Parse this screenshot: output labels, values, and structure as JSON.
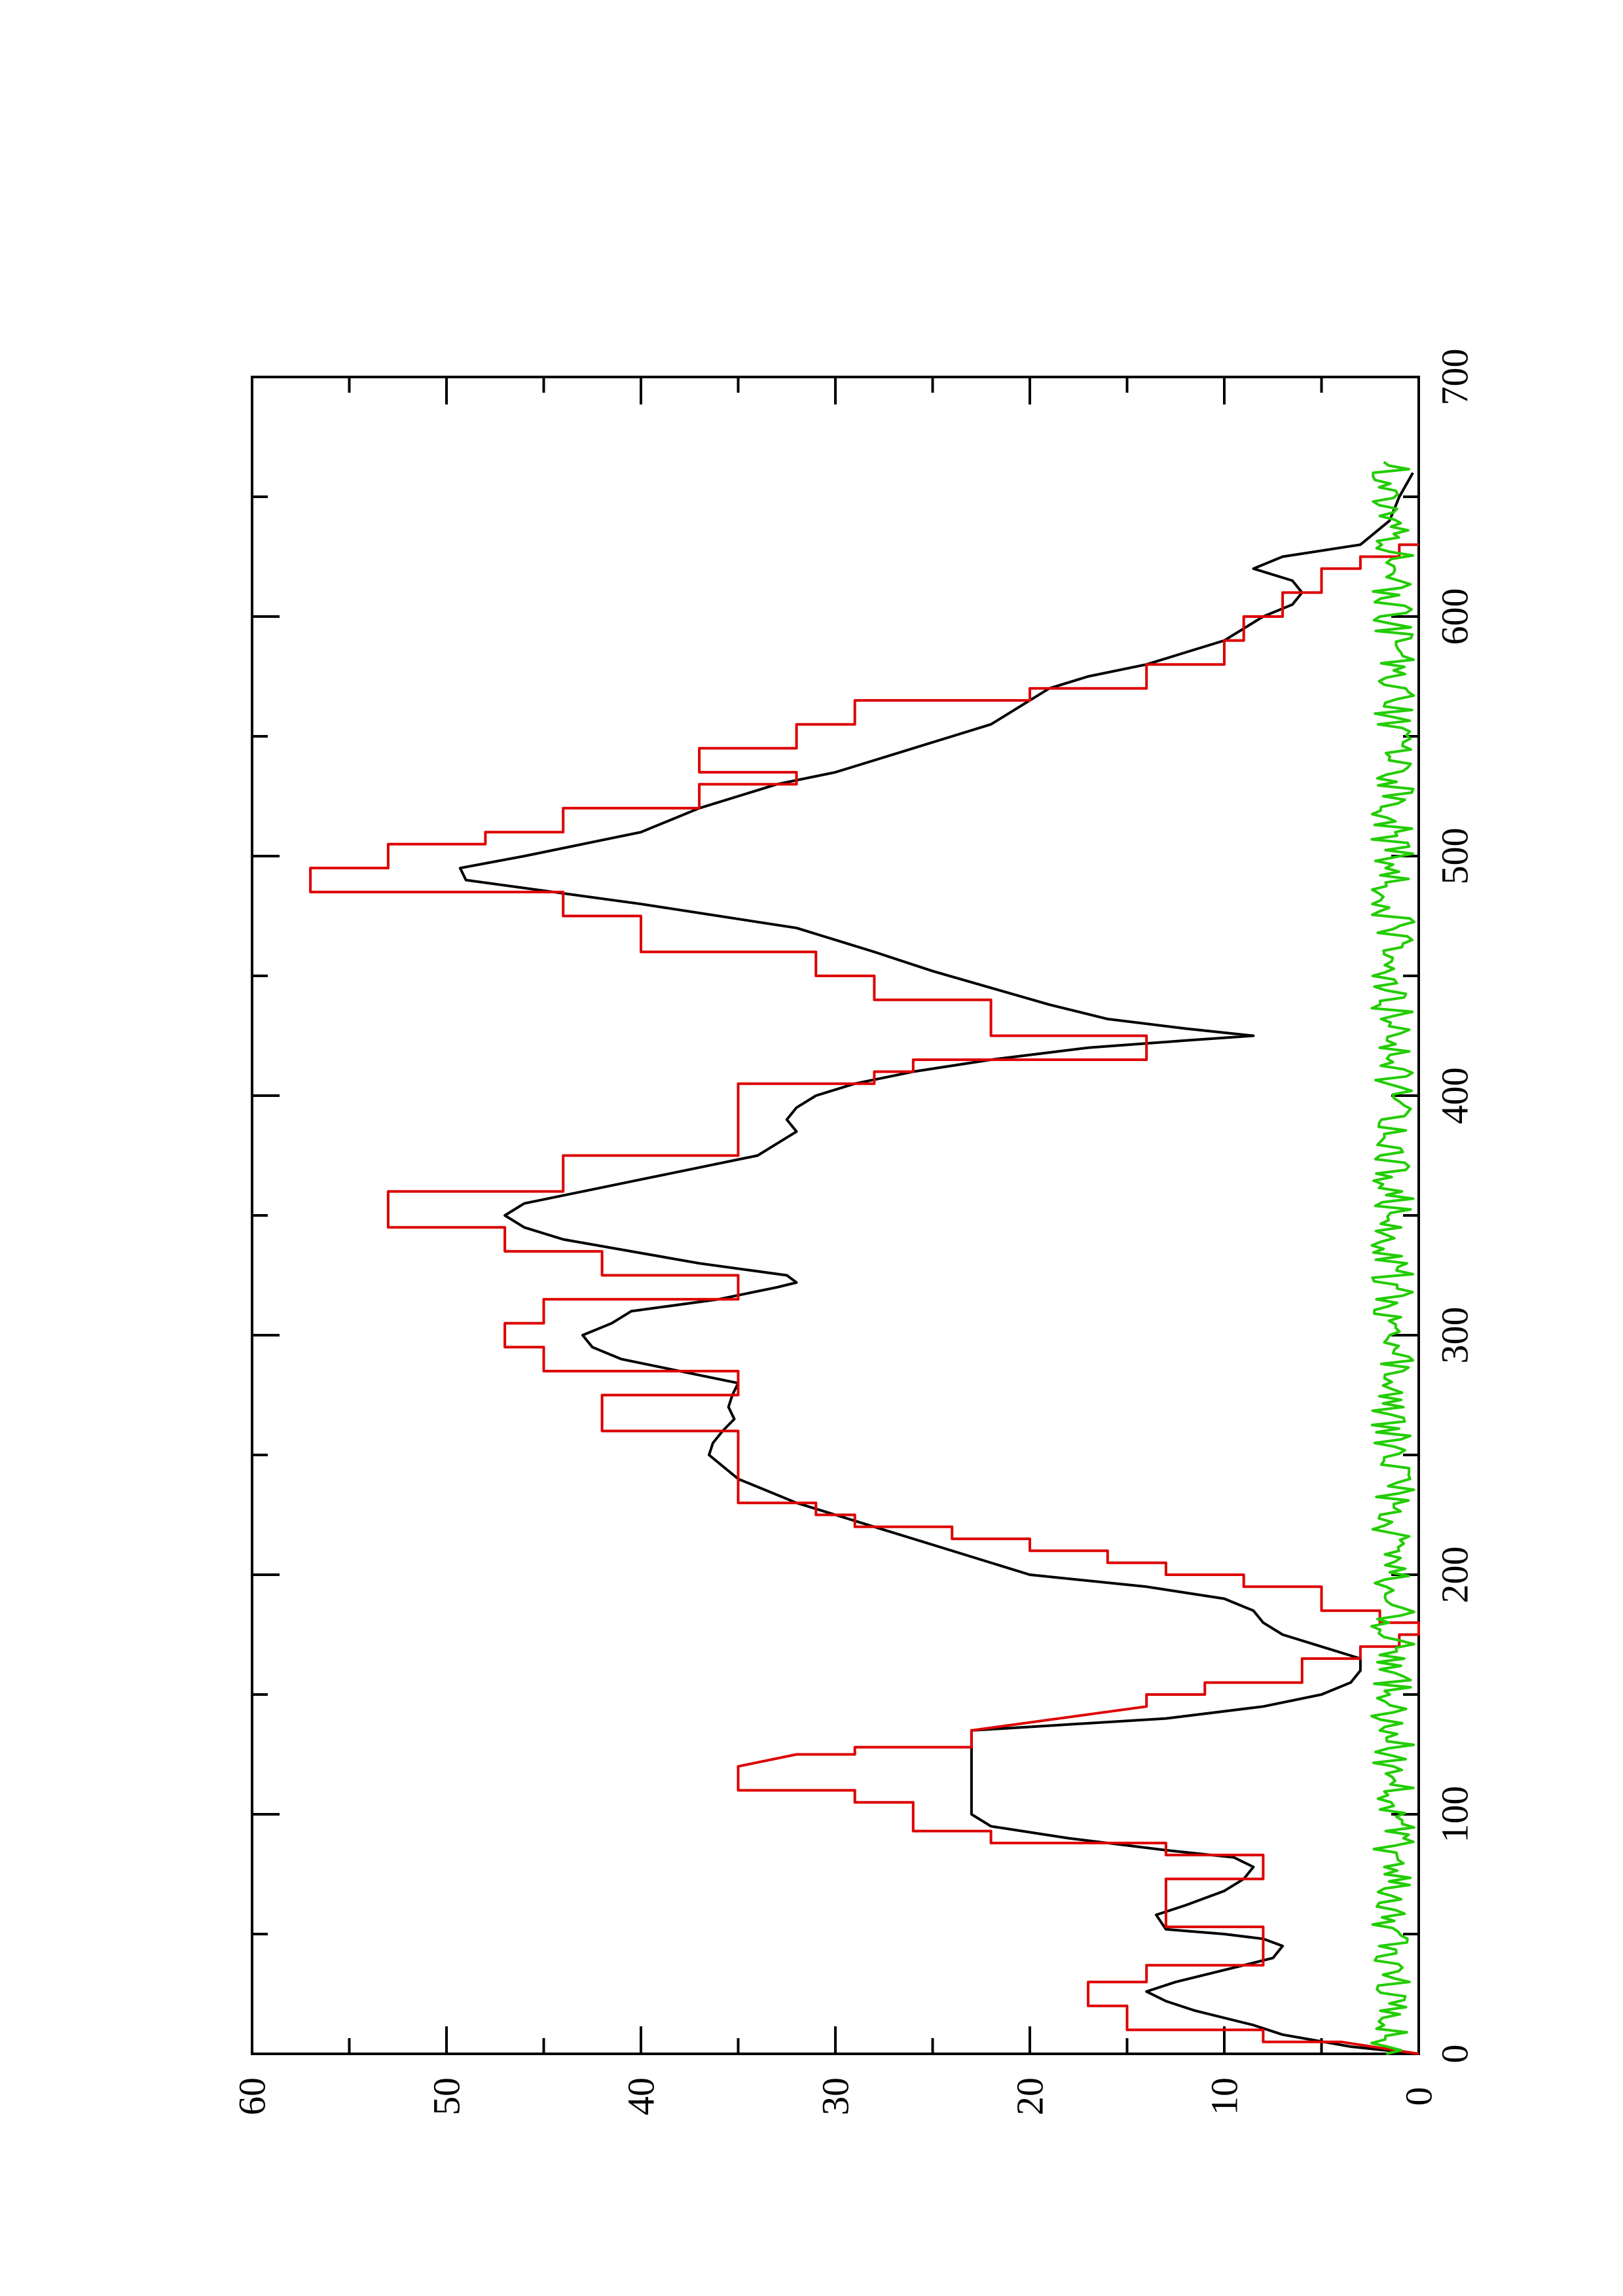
{
  "chart_data": {
    "type": "line",
    "orientation": "rotated 90 degrees counter-clockwise",
    "title": "",
    "xlabel": "",
    "ylabel": "",
    "xlim": [
      0,
      700
    ],
    "ylim": [
      0,
      60
    ],
    "x_ticks": [
      0,
      100,
      200,
      300,
      400,
      500,
      600,
      700
    ],
    "x_tick_labels": [
      "0",
      "100",
      "200",
      "300",
      "400",
      "500",
      "600",
      "700"
    ],
    "y_ticks": [
      0,
      10,
      20,
      30,
      40,
      50,
      60
    ],
    "y_tick_labels": [
      "0",
      "10",
      "20",
      "30",
      "40",
      "50",
      "60"
    ],
    "grid": false,
    "legend": "none",
    "series": [
      {
        "color": "#000000",
        "style": "smooth",
        "points": [
          [
            0,
            0
          ],
          [
            3,
            3.5
          ],
          [
            8,
            7
          ],
          [
            12,
            8.5
          ],
          [
            18,
            11.5
          ],
          [
            22,
            13
          ],
          [
            26,
            14
          ],
          [
            30,
            12.5
          ],
          [
            35,
            10
          ],
          [
            40,
            7.5
          ],
          [
            45,
            7
          ],
          [
            48,
            8
          ],
          [
            50,
            10
          ],
          [
            52,
            13
          ],
          [
            58,
            13.5
          ],
          [
            62,
            12
          ],
          [
            68,
            10
          ],
          [
            73,
            9
          ],
          [
            78,
            8.5
          ],
          [
            82,
            9.5
          ],
          [
            85,
            13
          ],
          [
            90,
            18
          ],
          [
            95,
            22
          ],
          [
            100,
            23
          ],
          [
            110,
            23
          ],
          [
            120,
            23
          ],
          [
            130,
            23
          ],
          [
            135,
            23
          ],
          [
            137,
            19
          ],
          [
            140,
            13
          ],
          [
            145,
            8
          ],
          [
            150,
            5
          ],
          [
            155,
            3.5
          ],
          [
            160,
            3
          ],
          [
            165,
            3
          ],
          [
            170,
            5
          ],
          [
            175,
            7
          ],
          [
            180,
            8
          ],
          [
            185,
            8.5
          ],
          [
            190,
            10
          ],
          [
            195,
            14
          ],
          [
            200,
            20
          ],
          [
            210,
            24
          ],
          [
            220,
            28
          ],
          [
            225,
            30
          ],
          [
            230,
            32
          ],
          [
            240,
            35
          ],
          [
            250,
            36.5
          ],
          [
            255,
            36.3
          ],
          [
            260,
            35.8
          ],
          [
            265,
            35.2
          ],
          [
            270,
            35.5
          ],
          [
            275,
            35.3
          ],
          [
            280,
            35
          ],
          [
            285,
            38
          ],
          [
            290,
            41
          ],
          [
            295,
            42.5
          ],
          [
            300,
            43
          ],
          [
            305,
            41.5
          ],
          [
            310,
            40.5
          ],
          [
            315,
            36
          ],
          [
            320,
            33
          ],
          [
            322,
            32
          ],
          [
            325,
            32.5
          ],
          [
            330,
            37
          ],
          [
            335,
            40.5
          ],
          [
            340,
            44
          ],
          [
            345,
            46
          ],
          [
            350,
            47
          ],
          [
            355,
            46
          ],
          [
            360,
            43
          ],
          [
            365,
            40
          ],
          [
            370,
            37
          ],
          [
            375,
            34
          ],
          [
            380,
            33
          ],
          [
            385,
            32
          ],
          [
            390,
            32.5
          ],
          [
            395,
            32
          ],
          [
            400,
            31
          ],
          [
            405,
            29
          ],
          [
            410,
            26
          ],
          [
            415,
            22
          ],
          [
            420,
            17
          ],
          [
            423,
            12
          ],
          [
            425,
            8.5
          ],
          [
            428,
            12
          ],
          [
            432,
            16
          ],
          [
            438,
            19
          ],
          [
            445,
            22
          ],
          [
            452,
            25
          ],
          [
            460,
            28
          ],
          [
            470,
            32
          ],
          [
            480,
            40
          ],
          [
            490,
            49
          ],
          [
            495,
            49.3
          ],
          [
            500,
            46
          ],
          [
            505,
            43
          ],
          [
            510,
            40
          ],
          [
            515,
            38.5
          ],
          [
            520,
            37
          ],
          [
            525,
            35
          ],
          [
            530,
            33
          ],
          [
            535,
            30
          ],
          [
            540,
            28
          ],
          [
            545,
            26
          ],
          [
            550,
            24
          ],
          [
            555,
            22
          ],
          [
            560,
            21
          ],
          [
            565,
            20
          ],
          [
            570,
            19
          ],
          [
            575,
            17
          ],
          [
            580,
            14
          ],
          [
            585,
            12
          ],
          [
            590,
            10
          ],
          [
            595,
            9
          ],
          [
            600,
            8
          ],
          [
            605,
            6.5
          ],
          [
            610,
            6
          ],
          [
            615,
            6.5
          ],
          [
            620,
            8.5
          ],
          [
            625,
            7
          ],
          [
            630,
            3
          ],
          [
            640,
            1.5
          ],
          [
            650,
            1
          ],
          [
            660,
            0.3
          ]
        ]
      },
      {
        "color": "#dd0000",
        "style": "step",
        "points": [
          [
            0,
            0
          ],
          [
            5,
            4
          ],
          [
            5,
            8
          ],
          [
            10,
            8
          ],
          [
            10,
            15
          ],
          [
            20,
            15
          ],
          [
            20,
            17
          ],
          [
            30,
            17
          ],
          [
            30,
            14
          ],
          [
            37,
            14
          ],
          [
            37,
            8
          ],
          [
            53,
            8
          ],
          [
            53,
            13
          ],
          [
            73,
            13
          ],
          [
            73,
            8
          ],
          [
            83,
            8
          ],
          [
            83,
            13
          ],
          [
            88,
            13
          ],
          [
            88,
            22
          ],
          [
            93,
            22
          ],
          [
            93,
            26
          ],
          [
            105,
            26
          ],
          [
            105,
            29
          ],
          [
            110,
            29
          ],
          [
            110,
            35
          ],
          [
            117,
            35
          ],
          [
            118,
            35
          ],
          [
            120,
            35
          ],
          [
            125,
            32
          ],
          [
            125,
            29
          ],
          [
            128,
            29
          ],
          [
            128,
            23
          ],
          [
            133,
            23
          ],
          [
            135,
            23
          ],
          [
            145,
            14
          ],
          [
            150,
            14
          ],
          [
            150,
            11
          ],
          [
            155,
            11
          ],
          [
            155,
            6
          ],
          [
            165,
            6
          ],
          [
            165,
            3
          ],
          [
            170,
            3
          ],
          [
            170,
            1
          ],
          [
            175,
            1
          ],
          [
            175,
            0
          ],
          [
            180,
            0
          ],
          [
            180,
            2
          ],
          [
            185,
            2
          ],
          [
            185,
            5
          ],
          [
            195,
            5
          ],
          [
            195,
            9
          ],
          [
            200,
            9
          ],
          [
            200,
            13
          ],
          [
            205,
            13
          ],
          [
            205,
            16
          ],
          [
            210,
            16
          ],
          [
            210,
            20
          ],
          [
            215,
            20
          ],
          [
            215,
            24
          ],
          [
            220,
            24
          ],
          [
            220,
            29
          ],
          [
            225,
            29
          ],
          [
            225,
            31
          ],
          [
            230,
            31
          ],
          [
            230,
            35
          ],
          [
            245,
            35
          ],
          [
            245,
            35
          ],
          [
            260,
            35
          ],
          [
            260,
            42
          ],
          [
            275,
            42
          ],
          [
            275,
            35
          ],
          [
            285,
            35
          ],
          [
            285,
            45
          ],
          [
            295,
            45
          ],
          [
            295,
            47
          ],
          [
            305,
            47
          ],
          [
            305,
            45
          ],
          [
            315,
            45
          ],
          [
            315,
            35
          ],
          [
            325,
            35
          ],
          [
            325,
            42
          ],
          [
            335,
            42
          ],
          [
            335,
            47
          ],
          [
            345,
            47
          ],
          [
            345,
            53
          ],
          [
            360,
            53
          ],
          [
            360,
            44
          ],
          [
            375,
            44
          ],
          [
            375,
            35
          ],
          [
            405,
            35
          ],
          [
            405,
            28
          ],
          [
            410,
            28
          ],
          [
            410,
            26
          ],
          [
            415,
            26
          ],
          [
            415,
            14
          ],
          [
            425,
            14
          ],
          [
            425,
            22
          ],
          [
            440,
            22
          ],
          [
            440,
            28
          ],
          [
            450,
            28
          ],
          [
            450,
            31
          ],
          [
            460,
            31
          ],
          [
            460,
            40
          ],
          [
            475,
            40
          ],
          [
            475,
            44
          ],
          [
            485,
            44
          ],
          [
            485,
            57
          ],
          [
            495,
            57
          ],
          [
            495,
            53
          ],
          [
            505,
            53
          ],
          [
            505,
            48
          ],
          [
            510,
            48
          ],
          [
            510,
            44
          ],
          [
            520,
            44
          ],
          [
            520,
            37
          ],
          [
            530,
            37
          ],
          [
            530,
            32
          ],
          [
            535,
            32
          ],
          [
            535,
            37
          ],
          [
            545,
            37
          ],
          [
            545,
            32
          ],
          [
            555,
            32
          ],
          [
            555,
            29
          ],
          [
            565,
            29
          ],
          [
            565,
            20
          ],
          [
            570,
            20
          ],
          [
            570,
            14
          ],
          [
            580,
            14
          ],
          [
            580,
            10
          ],
          [
            590,
            10
          ],
          [
            590,
            9
          ],
          [
            600,
            9
          ],
          [
            600,
            7
          ],
          [
            610,
            7
          ],
          [
            610,
            5
          ],
          [
            620,
            5
          ],
          [
            620,
            3
          ],
          [
            625,
            3
          ],
          [
            625,
            1
          ],
          [
            630,
            1
          ],
          [
            630,
            0
          ]
        ]
      },
      {
        "color": "#22cc00",
        "style": "noise",
        "baseline": 1.0,
        "amplitude": 2.2,
        "x_range": [
          0,
          665
        ]
      }
    ]
  }
}
